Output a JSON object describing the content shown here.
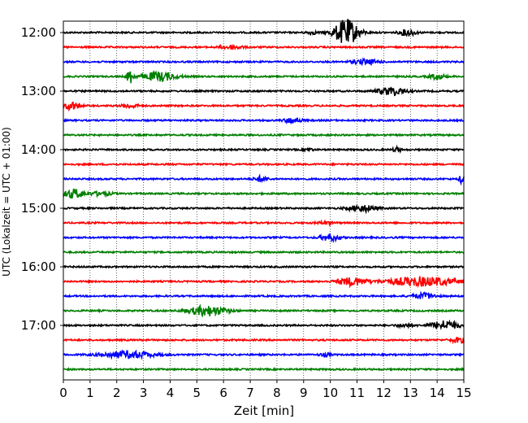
{
  "chart_data": {
    "type": "line",
    "title": "",
    "xlabel": "Zeit  [min]",
    "ylabel": "UTC (Lokalzeit = UTC + 01:00)",
    "xlim": [
      0,
      15
    ],
    "x_ticks": [
      0,
      1,
      2,
      3,
      4,
      5,
      6,
      7,
      8,
      9,
      10,
      11,
      12,
      13,
      14,
      15
    ],
    "y_ticks": [
      "12:00",
      "13:00",
      "14:00",
      "15:00",
      "16:00",
      "17:00"
    ],
    "grid": "vertical-dotted",
    "colors": [
      "#000000",
      "#ff0000",
      "#0000ff",
      "#008000"
    ],
    "trace_interval_min": 15,
    "traces": [
      {
        "start": "12:00",
        "color": "#000000",
        "events": [
          {
            "t": 10.6,
            "amp": 1.0,
            "dur": 0.45
          },
          {
            "t": 12.9,
            "amp": 0.25,
            "dur": 0.3
          },
          {
            "t": 9.3,
            "amp": 0.12,
            "dur": 0.2
          }
        ]
      },
      {
        "start": "12:15",
        "color": "#ff0000",
        "events": [
          {
            "t": 6.3,
            "amp": 0.15,
            "dur": 0.4
          }
        ]
      },
      {
        "start": "12:30",
        "color": "#0000ff",
        "events": [
          {
            "t": 11.3,
            "amp": 0.18,
            "dur": 0.5
          }
        ]
      },
      {
        "start": "12:45",
        "color": "#008000",
        "events": [
          {
            "t": 2.5,
            "amp": 0.55,
            "dur": 0.12
          },
          {
            "t": 3.6,
            "amp": 0.35,
            "dur": 0.6
          },
          {
            "t": 14.0,
            "amp": 0.2,
            "dur": 0.3
          }
        ]
      },
      {
        "start": "13:00",
        "color": "#000000",
        "events": [
          {
            "t": 12.3,
            "amp": 0.3,
            "dur": 0.5
          }
        ]
      },
      {
        "start": "13:15",
        "color": "#ff0000",
        "events": [
          {
            "t": 0.3,
            "amp": 0.3,
            "dur": 0.3
          },
          {
            "t": 2.5,
            "amp": 0.15,
            "dur": 0.3
          }
        ]
      },
      {
        "start": "13:30",
        "color": "#0000ff",
        "events": [
          {
            "t": 8.6,
            "amp": 0.22,
            "dur": 0.3
          }
        ]
      },
      {
        "start": "13:45",
        "color": "#008000",
        "events": []
      },
      {
        "start": "14:00",
        "color": "#000000",
        "events": [
          {
            "t": 9.2,
            "amp": 0.12,
            "dur": 0.15
          },
          {
            "t": 12.5,
            "amp": 0.18,
            "dur": 0.15
          }
        ]
      },
      {
        "start": "14:15",
        "color": "#ff0000",
        "events": []
      },
      {
        "start": "14:30",
        "color": "#0000ff",
        "events": [
          {
            "t": 7.4,
            "amp": 0.2,
            "dur": 0.25
          },
          {
            "t": 14.95,
            "amp": 0.35,
            "dur": 0.12
          }
        ]
      },
      {
        "start": "14:45",
        "color": "#008000",
        "events": [
          {
            "t": 0.4,
            "amp": 0.35,
            "dur": 0.35
          },
          {
            "t": 1.4,
            "amp": 0.15,
            "dur": 0.4
          }
        ]
      },
      {
        "start": "15:00",
        "color": "#000000",
        "events": [
          {
            "t": 11.2,
            "amp": 0.25,
            "dur": 0.5
          }
        ]
      },
      {
        "start": "15:15",
        "color": "#ff0000",
        "events": [
          {
            "t": 9.8,
            "amp": 0.1,
            "dur": 0.3
          }
        ]
      },
      {
        "start": "15:30",
        "color": "#0000ff",
        "events": [
          {
            "t": 10.0,
            "amp": 0.25,
            "dur": 0.35
          }
        ]
      },
      {
        "start": "15:45",
        "color": "#008000",
        "events": []
      },
      {
        "start": "16:00",
        "color": "#000000",
        "events": []
      },
      {
        "start": "16:15",
        "color": "#ff0000",
        "events": [
          {
            "t": 10.8,
            "amp": 0.3,
            "dur": 0.5
          },
          {
            "t": 13.4,
            "amp": 0.35,
            "dur": 1.3
          }
        ]
      },
      {
        "start": "16:30",
        "color": "#0000ff",
        "events": [
          {
            "t": 13.5,
            "amp": 0.22,
            "dur": 0.4
          }
        ]
      },
      {
        "start": "16:45",
        "color": "#008000",
        "events": [
          {
            "t": 5.4,
            "amp": 0.38,
            "dur": 0.7
          }
        ]
      },
      {
        "start": "17:00",
        "color": "#000000",
        "events": [
          {
            "t": 14.3,
            "amp": 0.35,
            "dur": 0.5
          },
          {
            "t": 12.8,
            "amp": 0.12,
            "dur": 0.3
          }
        ]
      },
      {
        "start": "17:15",
        "color": "#ff0000",
        "events": [
          {
            "t": 14.8,
            "amp": 0.2,
            "dur": 0.3
          }
        ]
      },
      {
        "start": "17:30",
        "color": "#0000ff",
        "events": [
          {
            "t": 2.4,
            "amp": 0.25,
            "dur": 1.0
          },
          {
            "t": 9.8,
            "amp": 0.12,
            "dur": 0.2
          }
        ]
      },
      {
        "start": "17:45",
        "color": "#008000",
        "events": []
      }
    ]
  }
}
